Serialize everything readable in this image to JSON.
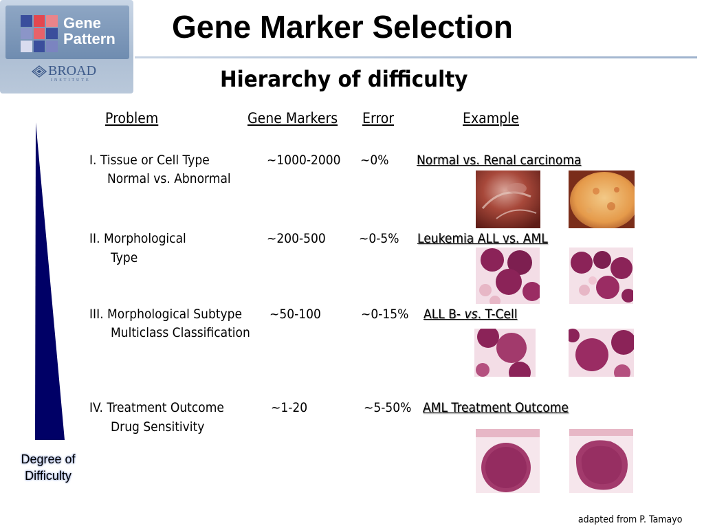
{
  "logo": {
    "line1": "Gene",
    "line2": "Pattern",
    "org": "BROAD",
    "org_sub": "INSTITUTE",
    "grid_colors": [
      "#3a4e9c",
      "#e3474f",
      "#e9848a",
      "#8b95c8",
      "#e8626a",
      "#3a4e9c",
      "#d9dcef",
      "#3a4e9c",
      "#7b84c0"
    ]
  },
  "title": "Gene Marker Selection",
  "subtitle": "Hierarchy of difficulty",
  "headers": {
    "problem": "Problem",
    "gene_markers": "Gene Markers",
    "error": "Error",
    "example": "Example"
  },
  "rows": [
    {
      "problem_line1": "I.  Tissue or Cell Type",
      "problem_line2": "Normal vs. Abnormal",
      "markers": "~1000-2000",
      "error": "~0%",
      "example_parts": [
        "Normal vs. Renal carcinoma"
      ]
    },
    {
      "problem_line1": "II.  Morphological",
      "problem_line2": "Type",
      "markers": "~200-500",
      "error": "~0-5%",
      "example_parts": [
        "Leukemia ALL vs. AML"
      ]
    },
    {
      "problem_line1": "III. Morphological Subtype",
      "problem_line2": "Multiclass Classification",
      "markers": "~50-100",
      "error": "~0-15%",
      "example_parts": [
        "ALL B- ",
        "vs",
        ". T-Cell"
      ]
    },
    {
      "problem_line1": "IV. Treatment Outcome",
      "problem_line2": "Drug Sensitivity",
      "markers": "~1-20",
      "error": "~5-50%",
      "example_parts": [
        "AML Treatment Outcome"
      ]
    }
  ],
  "axis_label": {
    "line1": "Degree of",
    "line2": "Difficulty"
  },
  "credit": "adapted from P. Tamayo",
  "colors": {
    "wedge": "#000066",
    "rule": "#9fb3cd",
    "cell_stain": "#8b2358",
    "cell_bg": "#f3dde6"
  }
}
